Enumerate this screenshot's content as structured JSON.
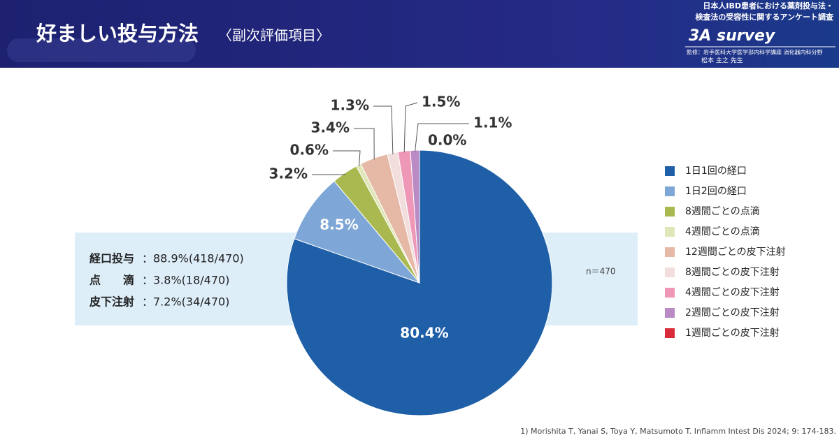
{
  "header": {
    "title": "好ましい投与方法",
    "subtitle": "〈副次評価項目〉",
    "survey_line1": "日本人IBD患者における薬剤投与法・",
    "survey_line2": "検査法の受容性に関するアンケート調査",
    "survey_name": "3A survey",
    "supervisor_line1": "監修：岩手医科大学医学部内科学講座 消化器内科分野",
    "supervisor_line2": "松本 主之 先生"
  },
  "summary": [
    {
      "label": "経口投与",
      "text": "：88.9%(418/470)"
    },
    {
      "label": "点　　滴",
      "text": "：3.8%(18/470)"
    },
    {
      "label": "皮下注射",
      "text": "：7.2%(34/470)"
    }
  ],
  "note": "n＝470",
  "footnote": "1) Morishita T, Yanai S, Toya Y, Matsumoto T. Inflamm Intest Dis 2024; 9: 174-183.",
  "chart_data": {
    "type": "pie",
    "categories": [
      "1日1回の経口",
      "1日2回の経口",
      "8週間ごとの点滴",
      "4週間ごとの点滴",
      "12週間ごとの皮下注射",
      "8週間ごとの皮下注射",
      "4週間ごとの皮下注射",
      "2週間ごとの皮下注射",
      "1週間ごとの皮下注射"
    ],
    "values": [
      80.4,
      8.5,
      3.2,
      0.6,
      3.4,
      1.3,
      1.5,
      1.1,
      0.0
    ],
    "value_labels": [
      "80.4%",
      "8.5%",
      "3.2%",
      "0.6%",
      "3.4%",
      "1.3%",
      "1.5%",
      "1.1%",
      "0.0%"
    ],
    "colors": [
      "#1f5fa8",
      "#7ea6d6",
      "#a9b94f",
      "#dfe6b8",
      "#e6b9a6",
      "#f3dede",
      "#ee97b6",
      "#b98ac4",
      "#d92b3a"
    ],
    "legend": "right"
  }
}
